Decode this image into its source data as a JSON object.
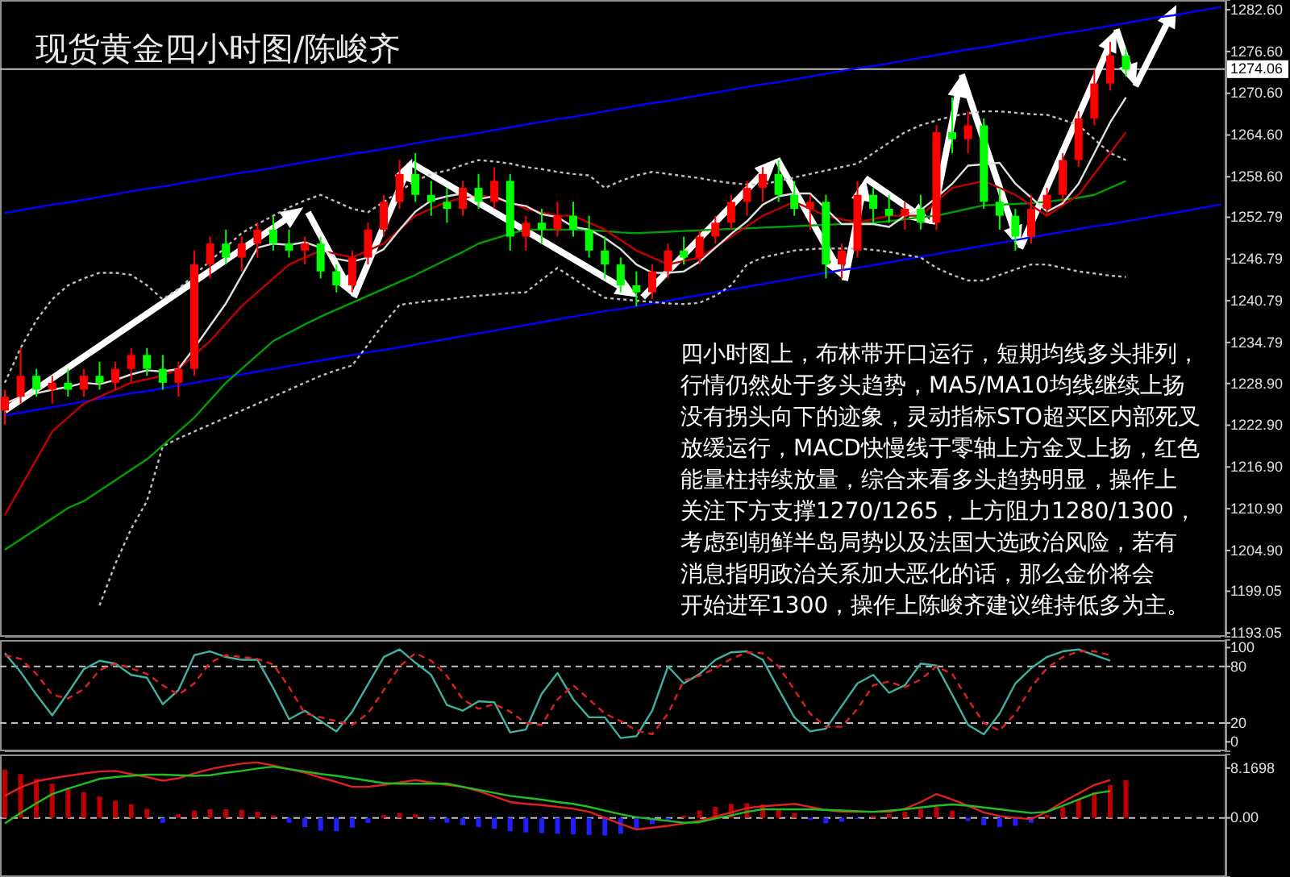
{
  "chart_data": [
    {
      "type": "candlestick",
      "title": "现货黄金四小时图/陈峻齐",
      "categories": [
        null,
        null,
        null,
        null,
        null,
        null,
        null,
        null,
        null,
        null,
        null,
        null,
        null,
        null,
        null,
        null,
        null,
        null,
        null,
        null,
        null,
        null,
        null,
        null,
        null,
        null,
        null,
        null,
        null,
        null,
        null,
        null,
        null,
        null,
        null,
        null,
        null,
        null,
        null,
        null,
        null,
        null,
        null,
        null,
        null,
        null,
        null,
        null,
        null,
        null,
        null,
        null,
        null,
        null,
        null,
        null,
        null,
        null,
        null,
        null,
        null,
        null,
        null,
        null,
        null,
        null,
        null,
        null,
        null,
        null,
        null,
        null,
        null,
        null,
        null,
        null,
        null,
        null
      ],
      "ylim": [
        1192.5,
        1284
      ],
      "yticks": [
        {
          "value": 1282.6,
          "label": "1282.60"
        },
        {
          "value": 1276.6,
          "label": "1276.60"
        },
        {
          "value": 1270.6,
          "label": "1270.60"
        },
        {
          "value": 1264.6,
          "label": "1264.60"
        },
        {
          "value": 1258.6,
          "label": "1258.60"
        },
        1252.79,
        1246.79,
        1240.79,
        1234.79,
        {
          "value": 1228.9,
          "label": "1228.90"
        },
        {
          "value": 1222.9,
          "label": "1222.90"
        },
        {
          "value": 1216.9,
          "label": "1216.90"
        },
        {
          "value": 1210.9,
          "label": "1210.90"
        },
        {
          "value": 1204.9,
          "label": "1204.90"
        },
        1199.05,
        1193.05
      ],
      "tick_labels": "y",
      "ref_lines": [
        {
          "axis": "y",
          "value": 1274.06,
          "label": "1274.06",
          "color": "#c0c0c0"
        }
      ],
      "annotations": [
        "四小时图上，布林带开口运行，短期均线多头排列，",
        "行情仍然处于多头趋势，MA5/MA10均线继续上扬",
        "没有拐头向下的迹象，灵动指标STO超买区内部死叉",
        "放缓运行，MACD快慢线于零轴上方金叉上扬，红色",
        "能量柱持续放量，综合来看多头趋势明显，操作上",
        "关注下方支撑1270/1265，上方阻力1280/1300，",
        "考虑到朝鲜半岛局势以及法国大选政治风险，若有",
        "消息指明政治关系加大恶化的话，那么金价将会",
        "开始进军1300，操作上陈峻齐建议维持低多为主。"
      ],
      "series": [
        {
          "type": "line",
          "color": "#0000ff",
          "line_style": "solid",
          "values": [
            1253.4,
            1253.8,
            1254.2,
            1254.6,
            1254.9,
            1255.3,
            1255.7,
            1256.1,
            1256.5,
            1256.9,
            1257.2,
            1257.6,
            1258.0,
            1258.4,
            1258.8,
            1259.2,
            1259.5,
            1259.9,
            1260.3,
            1260.7,
            1261.1,
            1261.5,
            1261.9,
            1262.2,
            1262.6,
            1263.0,
            1263.4,
            1263.8,
            1264.2,
            1264.5,
            1264.9,
            1265.3,
            1265.7,
            1266.1,
            1266.5,
            1266.9,
            1267.2,
            1267.6,
            1268.0,
            1268.4,
            1268.8,
            1269.2,
            1269.5,
            1269.9,
            1270.3,
            1270.7,
            1271.1,
            1271.5,
            1271.9,
            1272.2,
            1272.6,
            1273.0,
            1273.4,
            1273.8,
            1274.2,
            1274.5,
            1274.9,
            1275.3,
            1275.7,
            1276.1,
            1276.5,
            1276.9,
            1277.2,
            1277.6,
            1278.0,
            1278.4,
            1278.8,
            1279.2,
            1279.5,
            1279.9,
            1280.3,
            1280.7,
            1281.1,
            1281.5,
            1281.8,
            1282.2,
            1282.6,
            1283.0
          ]
        },
        {
          "type": "line",
          "color": "#0000ff",
          "line_style": "solid",
          "values": [
            1224.3,
            1224.7,
            1225.1,
            1225.5,
            1225.9,
            1226.3,
            1226.7,
            1227.1,
            1227.5,
            1227.8,
            1228.2,
            1228.6,
            1229.0,
            1229.4,
            1229.8,
            1230.2,
            1230.6,
            1231.0,
            1231.4,
            1231.8,
            1232.2,
            1232.6,
            1233.0,
            1233.4,
            1233.7,
            1234.1,
            1234.5,
            1234.9,
            1235.3,
            1235.7,
            1236.1,
            1236.5,
            1236.9,
            1237.3,
            1237.7,
            1238.1,
            1238.5,
            1238.9,
            1239.3,
            1239.6,
            1240.0,
            1240.4,
            1240.8,
            1241.2,
            1241.6,
            1242.0,
            1242.4,
            1242.8,
            1243.2,
            1243.6,
            1244.0,
            1244.4,
            1244.8,
            1245.2,
            1245.5,
            1245.9,
            1246.3,
            1246.7,
            1247.1,
            1247.5,
            1247.9,
            1248.3,
            1248.7,
            1249.1,
            1249.5,
            1249.9,
            1250.3,
            1250.7,
            1251.1,
            1251.5,
            1251.8,
            1252.2,
            1252.6,
            1253.0,
            1253.4,
            1253.8,
            1254.2,
            1254.6
          ]
        },
        {
          "type": "line",
          "color": "#c0c0c0",
          "line_style": "dotted",
          "values": [
            1229,
            1234,
            1238,
            1241,
            1243,
            1244,
            1244.8,
            1244.8,
            1244.5,
            1243,
            1241,
            1242.5,
            1244.5,
            1246.5,
            1248.5,
            1250.5,
            1251.8,
            1253,
            1254.2,
            1255.2,
            1256,
            1255,
            1254,
            1253.5,
            1255,
            1256.5,
            1258,
            1259,
            1259.5,
            1260.3,
            1261,
            1260.8,
            1260.5,
            1260,
            1259.7,
            1259.3,
            1259,
            1258.8,
            1257,
            1258,
            1258.8,
            1259.3,
            1259,
            1258.7,
            1258.4,
            1258,
            1257.7,
            1257.5,
            1257.5,
            1258,
            1258.5,
            1259,
            1259.5,
            1260,
            1260.5,
            1262,
            1263.5,
            1265,
            1266,
            1266.7,
            1267.3,
            1267.7,
            1268,
            1268,
            1267.8,
            1267.6,
            1267.5,
            1266.8,
            1266,
            1264,
            1262,
            1261,
            null,
            null,
            null,
            null,
            null,
            null
          ]
        },
        {
          "type": "line",
          "color": "#c0c0c0",
          "line_style": "dotted",
          "values": [
            null,
            null,
            null,
            null,
            null,
            null,
            1197,
            1203,
            1208,
            1212,
            1219.9,
            1221,
            1222,
            1223,
            1224,
            1225,
            1226,
            1227,
            1228,
            1229,
            1230,
            1230.8,
            1231.5,
            1234.5,
            1237.5,
            1240.2,
            1240.5,
            1240.8,
            1241,
            1241.3,
            1241.5,
            1241.7,
            1241.9,
            1242,
            1243.8,
            1245.5,
            1244,
            1242.5,
            1241.2,
            1241,
            1240.8,
            1240.6,
            1240.4,
            1240.3,
            1240.5,
            1241.5,
            1243,
            1246,
            1247,
            1247.5,
            1248,
            1248.2,
            1248.3,
            1248.3,
            1248.3,
            1248.1,
            1247.8,
            1247.4,
            1247,
            1245.5,
            1244.5,
            1243.7,
            1243.7,
            1244.5,
            1245.3,
            1246,
            1246,
            1245.5,
            1245,
            1244.7,
            1244.4,
            1244.2,
            null,
            null,
            null,
            null,
            null,
            null
          ]
        },
        {
          "type": "line",
          "color": "#00a000",
          "line_style": "solid",
          "values": [
            1205,
            1206.5,
            1208,
            1209.5,
            1211,
            1212,
            1213.5,
            1215,
            1216.5,
            1218,
            1220,
            1222,
            1224,
            1226.5,
            1229,
            1231,
            1233,
            1235,
            1236.2,
            1237.4,
            1238.5,
            1239.5,
            1240.5,
            1241.5,
            1242.5,
            1243.5,
            1244.5,
            1245.6,
            1246.7,
            1247.8,
            1249,
            1249.7,
            1250.4,
            1251,
            1251,
            1251,
            1251,
            1250.9,
            1250.8,
            1250.6,
            1250.5,
            1250.6,
            1250.7,
            1250.8,
            1250.9,
            1251,
            1251.1,
            1251.2,
            1251.3,
            1251.4,
            1251.5,
            1251.6,
            1251.7,
            1251.8,
            1251.9,
            1252,
            1252.2,
            1252.5,
            1252.8,
            1253,
            1253.5,
            1254,
            1254.5,
            1254.6,
            1254.7,
            1254.8,
            1255,
            1255.3,
            1255.6,
            1256,
            1257,
            1258,
            null,
            null,
            null,
            null,
            null,
            null
          ]
        },
        {
          "type": "line",
          "color": "#c00000",
          "line_style": "solid",
          "values": [
            1210,
            1214,
            1218,
            1222,
            1224,
            1226,
            1227,
            1228,
            1229,
            1229.5,
            1230,
            1231,
            1233,
            1235,
            1237.5,
            1240,
            1242,
            1244,
            1246,
            1247,
            1248,
            1247.5,
            1247,
            1248,
            1249,
            1251,
            1253,
            1254,
            1255,
            1255.5,
            1256,
            1255.5,
            1255,
            1254,
            1253.5,
            1253,
            1253,
            1252,
            1251,
            1249.5,
            1248,
            1247,
            1246,
            1246.5,
            1247,
            1248.5,
            1250,
            1251.5,
            1253,
            1254,
            1255,
            1254,
            1253,
            1252.5,
            1252,
            1252.5,
            1253,
            1253,
            1253,
            1255,
            1257,
            1257.5,
            1258,
            1257,
            1256,
            1254.5,
            1253,
            1254.5,
            1256,
            1259,
            1262,
            1265,
            null,
            null,
            null,
            null,
            null,
            null
          ]
        },
        {
          "type": "line",
          "color": "#e0e0e0",
          "line_style": "solid",
          "values": [
            1226,
            1227,
            1227.5,
            1228,
            1228.4,
            1229,
            1228.8,
            1229.4,
            1230.2,
            1230.8,
            1230.6,
            1231,
            1234,
            1237.2,
            1240.4,
            1244.4,
            1248.4,
            1249,
            1248.8,
            1249.2,
            1248.4,
            1246.8,
            1246.4,
            1247,
            1248.2,
            1251,
            1253.6,
            1255.2,
            1255.8,
            1256.2,
            1255.4,
            1255.8,
            1254.8,
            1254.4,
            1253.2,
            1252.8,
            1251.4,
            1251,
            1249.8,
            1248.2,
            1246,
            1244.8,
            1244.8,
            1245,
            1246.4,
            1248.4,
            1250.4,
            1252.2,
            1254.6,
            1255.8,
            1256.2,
            1256.2,
            1254,
            1251.8,
            1251.8,
            1251.8,
            1251.4,
            1253,
            1253.8,
            1255.6,
            1257.6,
            1260.2,
            1260.4,
            1260.6,
            1257.6,
            1255.6,
            1253.6,
            1254.8,
            1257.6,
            1262,
            1266.4,
            1270,
            null,
            null,
            null,
            null,
            null,
            null
          ]
        },
        {
          "ohlc": [
            [
              1225,
              1228,
              1223,
              1227
            ],
            [
              1227,
              1234,
              1226,
              1230
            ],
            [
              1230,
              1231,
              1227,
              1228
            ],
            [
              1228,
              1230,
              1226,
              1229
            ],
            [
              1229,
              1231,
              1227,
              1228
            ],
            [
              1228,
              1231,
              1227,
              1230
            ],
            [
              1230,
              1232,
              1228,
              1229
            ],
            [
              1229,
              1232,
              1228,
              1231
            ],
            [
              1231,
              1234,
              1229,
              1233
            ],
            [
              1233,
              1234,
              1230,
              1231
            ],
            [
              1231,
              1233,
              1228,
              1229
            ],
            [
              1229,
              1232,
              1227,
              1231
            ],
            [
              1231,
              1248,
              1230,
              1246
            ],
            [
              1246,
              1250,
              1244,
              1249
            ],
            [
              1249,
              1251,
              1246,
              1247
            ],
            [
              1247,
              1250,
              1245,
              1249
            ],
            [
              1249,
              1252,
              1247,
              1251
            ],
            [
              1251,
              1253,
              1248,
              1249
            ],
            [
              1249,
              1251,
              1247,
              1248
            ],
            [
              1248,
              1250,
              1246,
              1249
            ],
            [
              1249,
              1250,
              1244,
              1245
            ],
            [
              1245,
              1246,
              1242,
              1243
            ],
            [
              1243,
              1248,
              1242,
              1247
            ],
            [
              1247,
              1252,
              1246,
              1251
            ],
            [
              1251,
              1256,
              1250,
              1255
            ],
            [
              1255,
              1261,
              1254,
              1259
            ],
            [
              1259,
              1262,
              1255,
              1256
            ],
            [
              1256,
              1258,
              1253,
              1255
            ],
            [
              1255,
              1257,
              1252,
              1254
            ],
            [
              1254,
              1258,
              1253,
              1257
            ],
            [
              1257,
              1259,
              1254,
              1255
            ],
            [
              1255,
              1260,
              1254,
              1258
            ],
            [
              1258,
              1259,
              1248,
              1250
            ],
            [
              1250,
              1253,
              1248,
              1252
            ],
            [
              1252,
              1254,
              1249,
              1251
            ],
            [
              1251,
              1255,
              1250,
              1253
            ],
            [
              1253,
              1255,
              1250,
              1251
            ],
            [
              1251,
              1253,
              1247,
              1248
            ],
            [
              1248,
              1250,
              1244,
              1246
            ],
            [
              1246,
              1247,
              1242,
              1243
            ],
            [
              1243,
              1245,
              1240,
              1242
            ],
            [
              1242,
              1246,
              1241,
              1245
            ],
            [
              1245,
              1249,
              1244,
              1248
            ],
            [
              1248,
              1250,
              1246,
              1247
            ],
            [
              1247,
              1251,
              1246,
              1250
            ],
            [
              1250,
              1253,
              1249,
              1252
            ],
            [
              1252,
              1256,
              1251,
              1255
            ],
            [
              1255,
              1258,
              1253,
              1257
            ],
            [
              1257,
              1260,
              1255,
              1259
            ],
            [
              1259,
              1261,
              1255,
              1256
            ],
            [
              1256,
              1258,
              1253,
              1254
            ],
            [
              1254,
              1256,
              1251,
              1255
            ],
            [
              1255,
              1256,
              1244,
              1246
            ],
            [
              1246,
              1249,
              1244,
              1248
            ],
            [
              1248,
              1258,
              1247,
              1256
            ],
            [
              1256,
              1257,
              1252,
              1254
            ],
            [
              1254,
              1256,
              1252,
              1253
            ],
            [
              1253,
              1255,
              1251,
              1254
            ],
            [
              1254,
              1256,
              1251,
              1252
            ],
            [
              1252,
              1266,
              1251,
              1265
            ],
            [
              1265,
              1270,
              1262,
              1264
            ],
            [
              1264,
              1268,
              1262,
              1266
            ],
            [
              1266,
              1267,
              1254,
              1255
            ],
            [
              1255,
              1257,
              1251,
              1253
            ],
            [
              1253,
              1254,
              1248,
              1250
            ],
            [
              1250,
              1256,
              1249,
              1254
            ],
            [
              1254,
              1257,
              1253,
              1256
            ],
            [
              1256,
              1262,
              1255,
              1261
            ],
            [
              1261,
              1268,
              1260,
              1267
            ],
            [
              1267,
              1274,
              1266,
              1272
            ],
            [
              1272,
              1278,
              1271,
              1276
            ],
            [
              1276,
              1277,
              1273,
              1274
            ],
            null,
            null,
            null,
            null,
            null,
            null
          ],
          "colors": [
            "#ff0000",
            "#ff0000",
            "#00ff00",
            "#ff0000",
            "#00ff00",
            "#ff0000",
            "#00ff00",
            "#ff0000",
            "#ff0000",
            "#00ff00",
            "#00ff00",
            "#ff0000",
            "#ff0000",
            "#ff0000",
            "#00ff00",
            "#ff0000",
            "#ff0000",
            "#00ff00",
            "#00ff00",
            "#ff0000",
            "#00ff00",
            "#00ff00",
            "#ff0000",
            "#ff0000",
            "#ff0000",
            "#ff0000",
            "#00ff00",
            "#00ff00",
            "#00ff00",
            "#ff0000",
            "#00ff00",
            "#ff0000",
            "#00ff00",
            "#ff0000",
            "#00ff00",
            "#ff0000",
            "#00ff00",
            "#00ff00",
            "#00ff00",
            "#00ff00",
            "#00ff00",
            "#ff0000",
            "#ff0000",
            "#00ff00",
            "#ff0000",
            "#ff0000",
            "#ff0000",
            "#ff0000",
            "#ff0000",
            "#00ff00",
            "#00ff00",
            "#ff0000",
            "#00ff00",
            "#ff0000",
            "#ff0000",
            "#00ff00",
            "#00ff00",
            "#ff0000",
            "#00ff00",
            "#ff0000",
            "#00ff00",
            "#ff0000",
            "#00ff00",
            "#00ff00",
            "#00ff00",
            "#ff0000",
            "#ff0000",
            "#ff0000",
            "#ff0000",
            "#ff0000",
            "#ff0000",
            "#00ff00",
            null,
            null,
            null,
            null,
            null,
            null
          ]
        }
      ]
    },
    {
      "type": "line",
      "categories": [
        null,
        null,
        null,
        null,
        null,
        null,
        null,
        null,
        null,
        null,
        null,
        null,
        null,
        null,
        null,
        null,
        null,
        null,
        null,
        null,
        null,
        null,
        null,
        null,
        null,
        null,
        null,
        null,
        null,
        null,
        null,
        null,
        null,
        null,
        null,
        null,
        null,
        null,
        null,
        null,
        null,
        null,
        null,
        null,
        null,
        null,
        null,
        null,
        null,
        null,
        null,
        null,
        null,
        null,
        null,
        null,
        null,
        null,
        null,
        null,
        null,
        null,
        null,
        null,
        null,
        null,
        null,
        null,
        null,
        null,
        null,
        null,
        null,
        null,
        null,
        null,
        null,
        null
      ],
      "ylim": [
        -10,
        108
      ],
      "yticks": [
        100,
        80,
        20,
        0
      ],
      "tick_labels": "y",
      "ref_lines": [
        {
          "axis": "y",
          "value": 80,
          "label": null,
          "color": "#c0c0c0",
          "line_style": "dashed"
        },
        {
          "axis": "y",
          "value": 20,
          "label": null,
          "color": "#c0c0c0",
          "line_style": "dashed"
        }
      ],
      "series": [
        {
          "color": "#40b0a0",
          "line_style": "solid",
          "values": [
            94,
            74,
            50,
            28,
            52,
            77,
            86,
            83,
            71,
            68,
            40,
            55,
            92,
            96,
            90,
            87,
            87,
            57,
            24,
            33,
            22,
            11,
            32,
            61,
            90,
            98,
            84,
            71,
            39,
            33,
            43,
            42,
            10,
            13,
            51,
            73,
            45,
            26,
            26,
            4,
            6,
            33,
            80,
            62,
            72,
            87,
            95,
            96,
            87,
            56,
            26,
            11,
            14,
            38,
            62,
            71,
            52,
            60,
            83,
            81,
            50,
            18,
            8,
            30,
            62,
            78,
            90,
            96,
            98,
            92,
            86,
            null,
            null,
            null,
            null,
            null,
            null,
            null
          ]
        },
        {
          "color": "#e02020",
          "line_style": "dashed",
          "values": [
            92,
            88,
            72,
            50,
            46,
            56,
            76,
            83,
            78,
            72,
            60,
            50,
            62,
            84,
            92,
            90,
            88,
            82,
            58,
            30,
            26,
            22,
            18,
            30,
            55,
            80,
            94,
            86,
            70,
            45,
            35,
            40,
            32,
            20,
            18,
            45,
            60,
            45,
            30,
            22,
            12,
            8,
            30,
            65,
            70,
            78,
            88,
            95,
            94,
            80,
            55,
            30,
            16,
            16,
            35,
            60,
            64,
            58,
            66,
            80,
            72,
            45,
            20,
            12,
            30,
            58,
            78,
            90,
            96,
            96,
            92,
            null,
            null,
            null,
            null,
            null,
            null,
            null
          ]
        }
      ]
    },
    {
      "type": "bar",
      "categories": [
        null,
        null,
        null,
        null,
        null,
        null,
        null,
        null,
        null,
        null,
        null,
        null,
        null,
        null,
        null,
        null,
        null,
        null,
        null,
        null,
        null,
        null,
        null,
        null,
        null,
        null,
        null,
        null,
        null,
        null,
        null,
        null,
        null,
        null,
        null,
        null,
        null,
        null,
        null,
        null,
        null,
        null,
        null,
        null,
        null,
        null,
        null,
        null,
        null,
        null,
        null,
        null,
        null,
        null,
        null,
        null,
        null,
        null,
        null,
        null,
        null,
        null,
        null,
        null,
        null,
        null,
        null,
        null,
        null,
        null,
        null,
        null,
        null,
        null,
        null,
        null,
        null,
        null
      ],
      "ylim": [
        -9.7,
        10.4
      ],
      "yticks": [
        {
          "value": 8.1698,
          "label": "8.1698"
        },
        {
          "value": 0,
          "label": "0.00"
        }
      ],
      "tick_labels": "y",
      "ref_lines": [
        {
          "axis": "y",
          "value": 0,
          "label": null,
          "color": "#c0c0c0",
          "line_style": "dashed"
        }
      ],
      "series": [
        {
          "values": [
            7.9,
            7.2,
            6.4,
            5.6,
            4.9,
            4.2,
            3.5,
            2.8,
            2.2,
            1.5,
            -0.8,
            0.6,
            1.2,
            1.4,
            1.4,
            1.3,
            1.0,
            0.4,
            -0.8,
            -1.5,
            -2.1,
            -2.2,
            -1.6,
            -0.8,
            0.5,
            0.8,
            0.6,
            -0.3,
            -0.8,
            -1.2,
            -1.5,
            -1.8,
            -2.2,
            -2.4,
            -2.5,
            -2.6,
            -2.7,
            -2.8,
            -2.9,
            -2.6,
            -1.9,
            -1.0,
            -0.4,
            0.4,
            1.2,
            1.8,
            2.3,
            2.4,
            2.2,
            1.5,
            0.8,
            -0.3,
            -0.9,
            -0.6,
            -0.2,
            0.3,
            0.6,
            1.0,
            1.5,
            1.8,
            1.2,
            -0.5,
            -1.2,
            -1.5,
            -1.3,
            -0.8,
            0.5,
            1.8,
            3.0,
            4.2,
            5.4,
            6.2,
            null,
            null,
            null,
            null,
            null,
            null
          ],
          "colors": [
            "#c00000",
            "#c00000",
            "#c00000",
            "#c00000",
            "#c00000",
            "#c00000",
            "#c00000",
            "#c00000",
            "#c00000",
            "#c00000",
            "#2020ff",
            "#c00000",
            "#c00000",
            "#c00000",
            "#c00000",
            "#c00000",
            "#c00000",
            "#c00000",
            "#2020ff",
            "#2020ff",
            "#2020ff",
            "#2020ff",
            "#2020ff",
            "#2020ff",
            "#c00000",
            "#c00000",
            "#c00000",
            "#2020ff",
            "#2020ff",
            "#2020ff",
            "#2020ff",
            "#2020ff",
            "#2020ff",
            "#2020ff",
            "#2020ff",
            "#2020ff",
            "#2020ff",
            "#2020ff",
            "#2020ff",
            "#2020ff",
            "#2020ff",
            "#2020ff",
            "#2020ff",
            "#c00000",
            "#c00000",
            "#c00000",
            "#c00000",
            "#c00000",
            "#c00000",
            "#c00000",
            "#c00000",
            "#2020ff",
            "#2020ff",
            "#2020ff",
            "#2020ff",
            "#c00000",
            "#c00000",
            "#c00000",
            "#c00000",
            "#c00000",
            "#c00000",
            "#2020ff",
            "#2020ff",
            "#2020ff",
            "#2020ff",
            "#2020ff",
            "#c00000",
            "#c00000",
            "#c00000",
            "#c00000",
            "#c00000",
            "#c00000",
            null,
            null,
            null,
            null,
            null,
            null
          ]
        },
        {
          "type": "line",
          "color": "#e02020",
          "line_style": "solid",
          "values": [
            3.6,
            5.0,
            6.0,
            6.5,
            6.9,
            7.3,
            7.6,
            7.7,
            7.2,
            6.7,
            6.1,
            6.5,
            7.3,
            8.0,
            8.5,
            8.9,
            9.1,
            8.6,
            8.0,
            7.4,
            6.6,
            5.9,
            5.1,
            5.1,
            5.4,
            5.8,
            6.2,
            5.8,
            5.4,
            5.1,
            4.4,
            3.5,
            2.6,
            2.3,
            2.1,
            1.8,
            1.5,
            1.0,
            0.0,
            -1.0,
            -1.9,
            -1.6,
            -1.3,
            -0.9,
            -0.5,
            0.2,
            0.9,
            1.6,
            1.9,
            2.1,
            2.3,
            1.8,
            1.3,
            1.0,
            1.0,
            1.0,
            1.0,
            1.5,
            2.6,
            3.9,
            3.0,
            2.0,
            0.9,
            0.3,
            0.0,
            -0.2,
            1.0,
            2.6,
            4.0,
            5.4,
            6.2,
            null,
            null,
            null,
            null,
            null,
            null,
            null
          ]
        },
        {
          "type": "line",
          "color": "#20c020",
          "line_style": "solid",
          "values": [
            -0.9,
            0.8,
            2.4,
            3.9,
            4.8,
            5.6,
            6.4,
            6.7,
            6.9,
            7.1,
            7.1,
            7.0,
            6.9,
            7.0,
            7.4,
            7.7,
            8.1,
            8.4,
            8.0,
            7.6,
            7.2,
            6.9,
            6.5,
            6.1,
            5.7,
            5.6,
            5.6,
            5.6,
            5.6,
            5.1,
            4.6,
            4.1,
            3.6,
            3.3,
            3.0,
            2.6,
            2.3,
            1.8,
            1.2,
            0.6,
            0.1,
            -0.2,
            -0.5,
            -0.8,
            -0.7,
            -0.1,
            0.4,
            1.0,
            1.4,
            1.4,
            1.4,
            1.4,
            1.3,
            1.2,
            1.1,
            1.0,
            1.2,
            1.4,
            1.7,
            2.0,
            2.2,
            2.0,
            1.7,
            1.4,
            1.1,
            0.8,
            1.0,
            2.0,
            3.0,
            4.0,
            4.4,
            null,
            null,
            null,
            null,
            null,
            null,
            null
          ]
        }
      ]
    }
  ]
}
